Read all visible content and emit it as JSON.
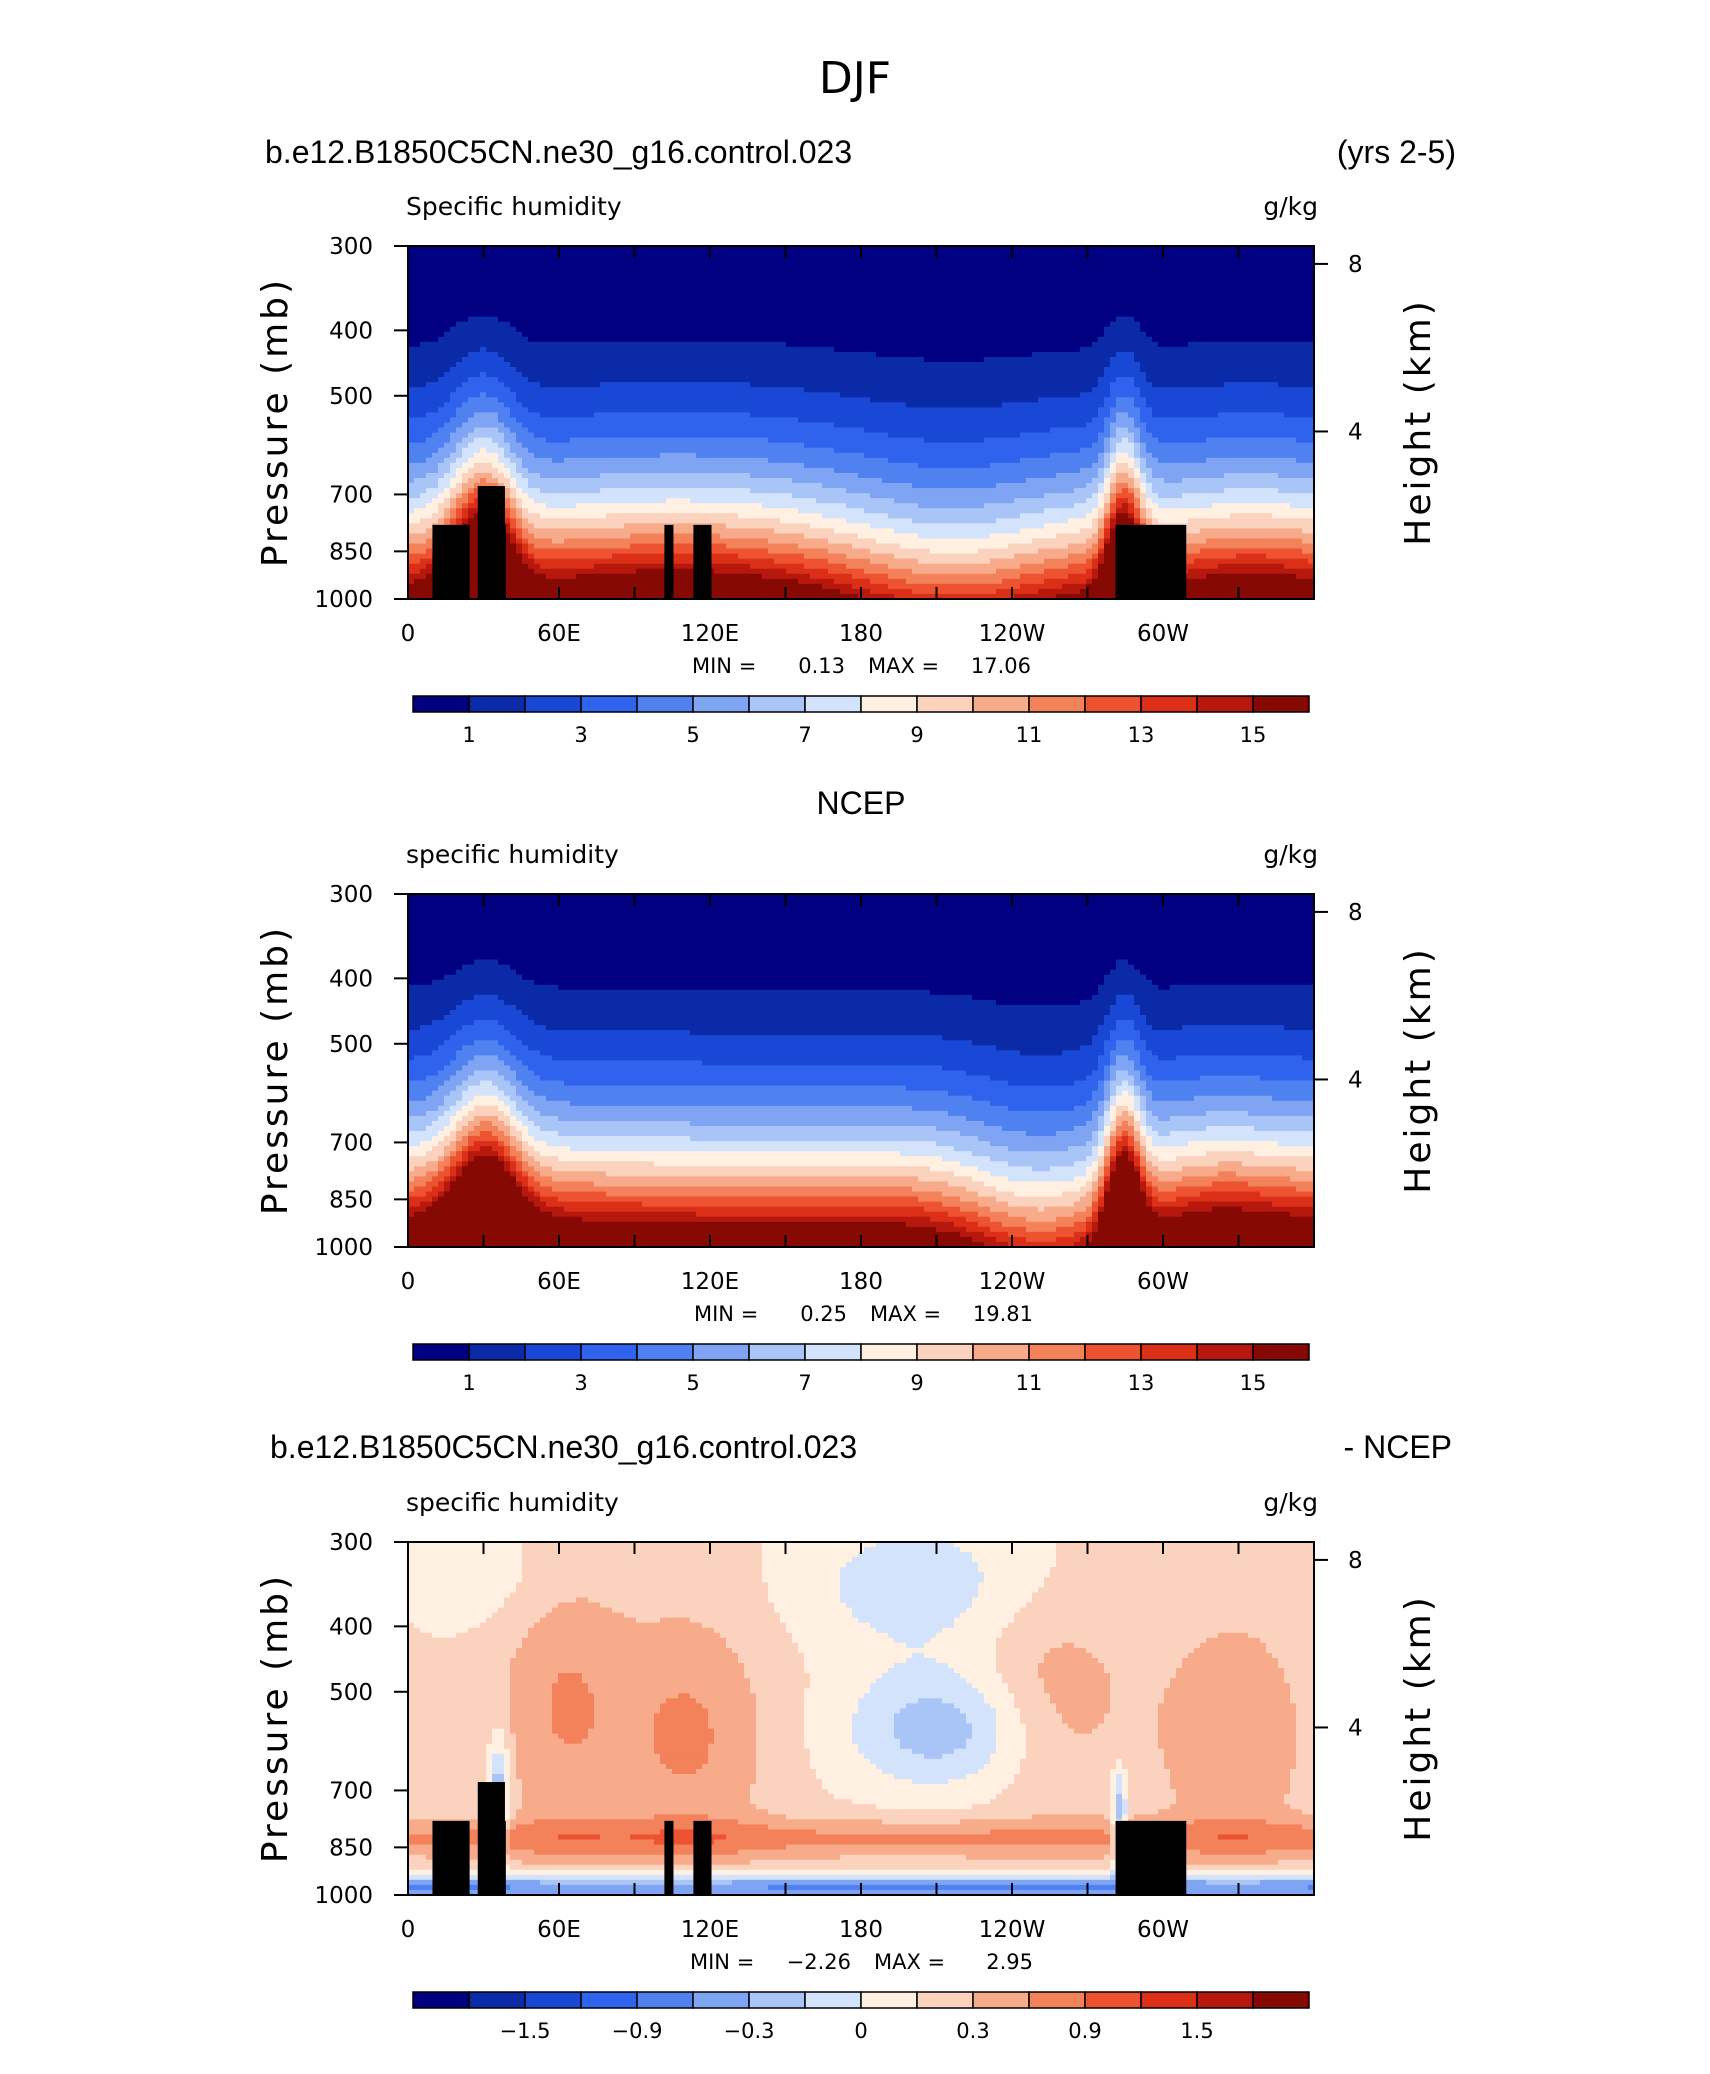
{
  "figure_title": "DJF",
  "chart_data": [
    {
      "type": "contour",
      "case_label": "b.e12.B1850C5CN.ne30_g16.control.023",
      "period_label": "(yrs 2-5)",
      "title": "",
      "variable_label": "Specific humidity",
      "units": "g/kg",
      "ylabel": "Pressure (mb)",
      "y2label": "Height (km)",
      "x_ticks": [
        "0",
        "60E",
        "120E",
        "180",
        "120W",
        "60W"
      ],
      "y_ticks": [
        "300",
        "400",
        "500",
        "700",
        "850",
        "1000"
      ],
      "y_values": [
        300,
        400,
        500,
        700,
        850,
        1000
      ],
      "y2_ticks": [
        "8",
        "4"
      ],
      "min_label": "MIN =",
      "min_value": "0.13",
      "max_label": "MAX =",
      "max_value": "17.06",
      "colorbar_labels": [
        "1",
        "3",
        "5",
        "7",
        "9",
        "11",
        "13",
        "15"
      ],
      "colorbar_bins": 16,
      "has_topography": true
    },
    {
      "type": "contour",
      "case_label": "",
      "period_label": "",
      "title": "NCEP",
      "variable_label": "specific humidity",
      "units": "g/kg",
      "ylabel": "Pressure (mb)",
      "y2label": "Height (km)",
      "x_ticks": [
        "0",
        "60E",
        "120E",
        "180",
        "120W",
        "60W"
      ],
      "y_ticks": [
        "300",
        "400",
        "500",
        "700",
        "850",
        "1000"
      ],
      "y_values": [
        300,
        400,
        500,
        700,
        850,
        1000
      ],
      "y2_ticks": [
        "8",
        "4"
      ],
      "min_label": "MIN =",
      "min_value": "0.25",
      "max_label": "MAX =",
      "max_value": "19.81",
      "colorbar_labels": [
        "1",
        "3",
        "5",
        "7",
        "9",
        "11",
        "13",
        "15"
      ],
      "colorbar_bins": 16,
      "has_topography": false
    },
    {
      "type": "contour",
      "case_label": "b.e12.B1850C5CN.ne30_g16.control.023",
      "period_label": "- NCEP",
      "title": "",
      "variable_label": "specific humidity",
      "units": "g/kg",
      "ylabel": "Pressure (mb)",
      "y2label": "Height (km)",
      "x_ticks": [
        "0",
        "60E",
        "120E",
        "180",
        "120W",
        "60W"
      ],
      "y_ticks": [
        "300",
        "400",
        "500",
        "700",
        "850",
        "1000"
      ],
      "y_values": [
        300,
        400,
        500,
        700,
        850,
        1000
      ],
      "y2_ticks": [
        "8",
        "4"
      ],
      "min_label": "MIN =",
      "min_value": "−2.26",
      "max_label": "MAX =",
      "max_value": "2.95",
      "colorbar_labels": [
        "−1.5",
        "−0.9",
        "−0.3",
        "0",
        "0.3",
        "0.9",
        "1.5"
      ],
      "colorbar_bins": 16,
      "has_topography": true
    }
  ],
  "colors": {
    "ramp": [
      "#000080",
      "#0a2aa8",
      "#1a48d6",
      "#2f63ee",
      "#4f82f0",
      "#7ea4f3",
      "#a9c4f6",
      "#d3e3fb",
      "#fff0e2",
      "#fbd2be",
      "#f7ab8a",
      "#f3815a",
      "#ed5330",
      "#db2f17",
      "#b6180d",
      "#860903"
    ],
    "topography": "#000000"
  }
}
